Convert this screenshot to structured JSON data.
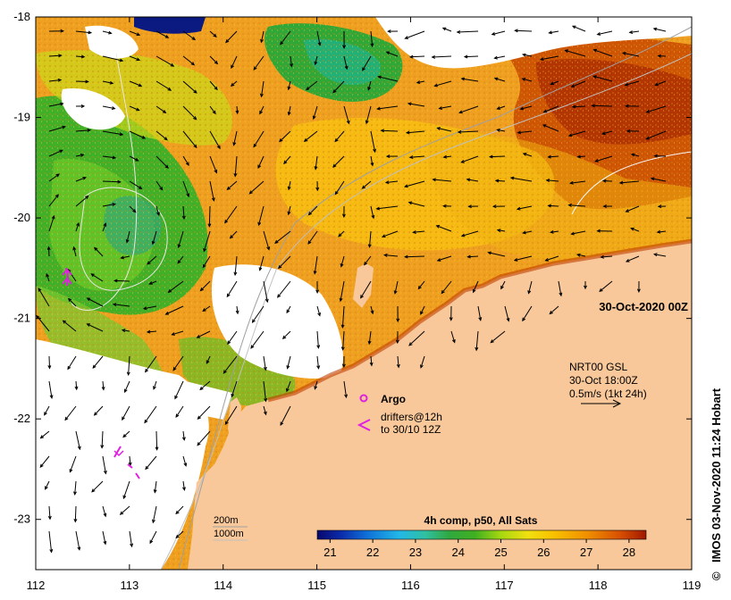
{
  "map": {
    "lon_ticks": [
      "112",
      "113",
      "114",
      "115",
      "116",
      "117",
      "118",
      "119"
    ],
    "lat_ticks": [
      "-18",
      "-19",
      "-20",
      "-21",
      "-22",
      "-23"
    ],
    "lon_range": [
      112,
      119
    ],
    "lat_range": [
      -23.5,
      -18
    ],
    "date_label": "30-Oct-2020 00Z",
    "product": {
      "line1": "NRT00 GSL",
      "line2": "30-Oct 18:00Z",
      "line3": "0.5m/s (1kt 24h)"
    },
    "legend": {
      "argo": "Argo",
      "drifters_line1": "drifters@12h",
      "drifters_line2": "to 30/10 12Z"
    },
    "isobaths": {
      "shallow": "200m",
      "deep": "1000m"
    },
    "colorbar": {
      "title": "4h comp, p50, All Sats",
      "ticks": [
        "21",
        "22",
        "23",
        "24",
        "25",
        "26",
        "27",
        "28"
      ],
      "range": [
        20.7,
        28.4
      ],
      "colors": [
        "#08086e",
        "#0a2aa8",
        "#0f6fd8",
        "#22b8e8",
        "#39c8a8",
        "#38b060",
        "#20a020",
        "#60c020",
        "#b0dc10",
        "#f0e010",
        "#f8c000",
        "#f09000",
        "#e06000",
        "#c83800",
        "#a01800"
      ]
    },
    "colors": {
      "land": "#f9c89a",
      "warm": "#f0a020",
      "hot": "#c84800",
      "cool": "#30a830",
      "cold": "#10b8a0",
      "yellow": "#e8d818",
      "argo": "#e020e0",
      "drifter": "#e020e0"
    },
    "credit": "IMOS 03-Nov-2020 11:24 Hobart",
    "icons": [
      "copyright-icon",
      "velocity-arrow-icon",
      "argo-float-icon",
      "drifter-track-icon"
    ]
  }
}
